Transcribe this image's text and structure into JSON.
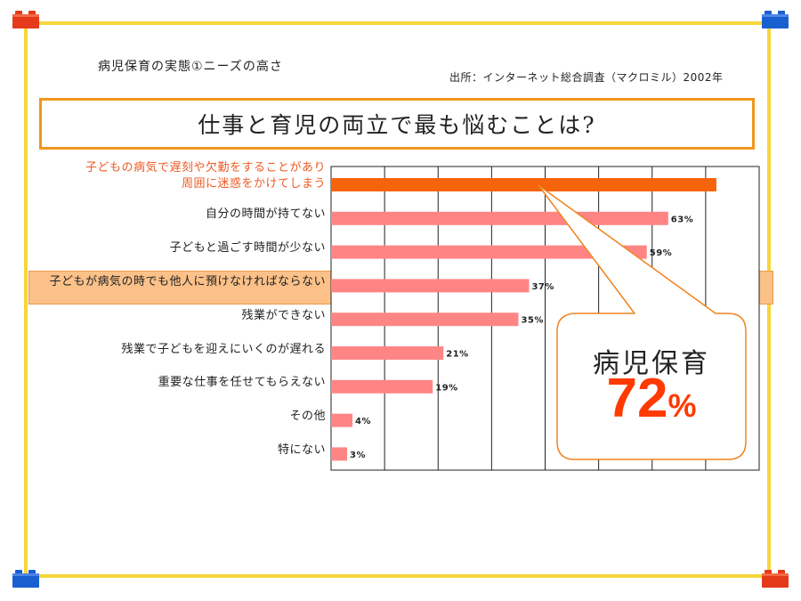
{
  "slide": {
    "subtitle": "病児保育の実態①ニーズの高さ",
    "source": "出所：インターネット総合調査（マクロミル）2002年",
    "question": "仕事と育児の両立で最も悩むことは?"
  },
  "callout": {
    "label": "病児保育",
    "value_number": "72",
    "value_unit": "%"
  },
  "colors": {
    "frame": "#f6d63a",
    "question_border": "#f0961c",
    "top_bar": "#f5630b",
    "bar": "#ff8585",
    "highlight_row": "#fbc189",
    "callout_border": "#f0831e",
    "callout_value": "#ff3a00",
    "emphasis_text": "#ee5a24"
  },
  "icons": [
    "red-brick-icon",
    "blue-brick-icon"
  ],
  "chart_data": {
    "type": "bar",
    "orientation": "horizontal",
    "categories": [
      [
        "子どもの病気で遅刻や欠勤をすることがあり",
        "周囲に迷惑をかけてしまう"
      ],
      "自分の時間が持てない",
      "子どもと過ごす時間が少ない",
      "子どもが病気の時でも他人に預けなければならない",
      "残業ができない",
      "残業で子どもを迎えにいくのが遅れる",
      "重要な仕事を任せてもらえない",
      "その他",
      "特にない"
    ],
    "values": [
      72,
      63,
      59,
      37,
      35,
      21,
      19,
      4,
      3
    ],
    "value_labels": [
      "",
      "63%",
      "59%",
      "37%",
      "35%",
      "21%",
      "19%",
      "4%",
      "3%"
    ],
    "xlim": [
      0,
      80
    ],
    "grid": true,
    "highlight_categories": [
      0,
      3
    ]
  }
}
